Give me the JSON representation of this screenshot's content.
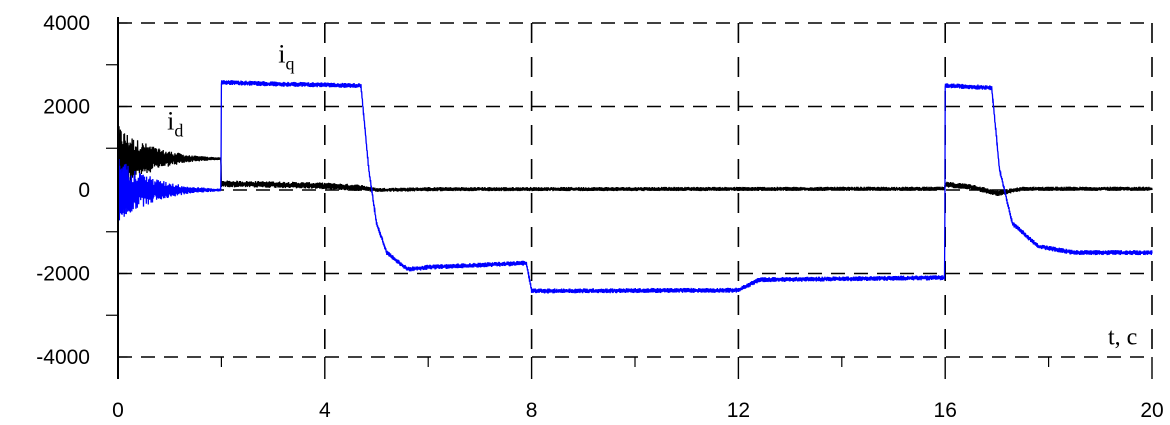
{
  "chart_data": {
    "type": "line",
    "xlabel": "t, c",
    "ylabel": "",
    "xlim": [
      0,
      20
    ],
    "ylim": [
      -4000,
      4000
    ],
    "x_ticks": [
      "0",
      "4",
      "8",
      "12",
      "16",
      "20"
    ],
    "y_ticks": [
      "4000",
      "2000",
      "0",
      "-2000",
      "-4000"
    ],
    "grid": true,
    "series": [
      {
        "name": "i_q",
        "label_main": "i",
        "label_sub": "q",
        "color": "#0000ff",
        "x": [
          0,
          0.3,
          0.8,
          1.4,
          1.99,
          2.0,
          3.0,
          4.7,
          4.85,
          5.0,
          5.2,
          5.6,
          6.0,
          7.9,
          8.0,
          12.0,
          12.4,
          15.99,
          16.0,
          16.9,
          17.05,
          17.3,
          17.8,
          18.5,
          20.0
        ],
        "y": [
          0,
          0,
          0,
          0,
          0,
          2580,
          2540,
          2500,
          500,
          -800,
          -1500,
          -1900,
          -1850,
          -1750,
          -2420,
          -2400,
          -2150,
          -2100,
          2500,
          2450,
          500,
          -800,
          -1350,
          -1500,
          -1500
        ],
        "noise": [
          800,
          500,
          240,
          80,
          30,
          60,
          60,
          60,
          60,
          60,
          60,
          60,
          60,
          60,
          60,
          60,
          60,
          60,
          60,
          60,
          60,
          60,
          60,
          60,
          60
        ]
      },
      {
        "name": "i_d",
        "label_main": "i",
        "label_sub": "d",
        "color": "#000000",
        "x": [
          0,
          0.3,
          0.8,
          1.4,
          1.99,
          2.0,
          3.0,
          4.0,
          4.7,
          5.0,
          6.0,
          15.99,
          16.0,
          16.5,
          17.0,
          17.5,
          20.0
        ],
        "y": [
          750,
          750,
          750,
          750,
          750,
          150,
          130,
          100,
          50,
          0,
          20,
          30,
          130,
          80,
          -80,
          30,
          30
        ],
        "noise": [
          800,
          500,
          240,
          80,
          30,
          80,
          80,
          80,
          80,
          50,
          50,
          50,
          70,
          70,
          70,
          50,
          50
        ]
      }
    ]
  }
}
